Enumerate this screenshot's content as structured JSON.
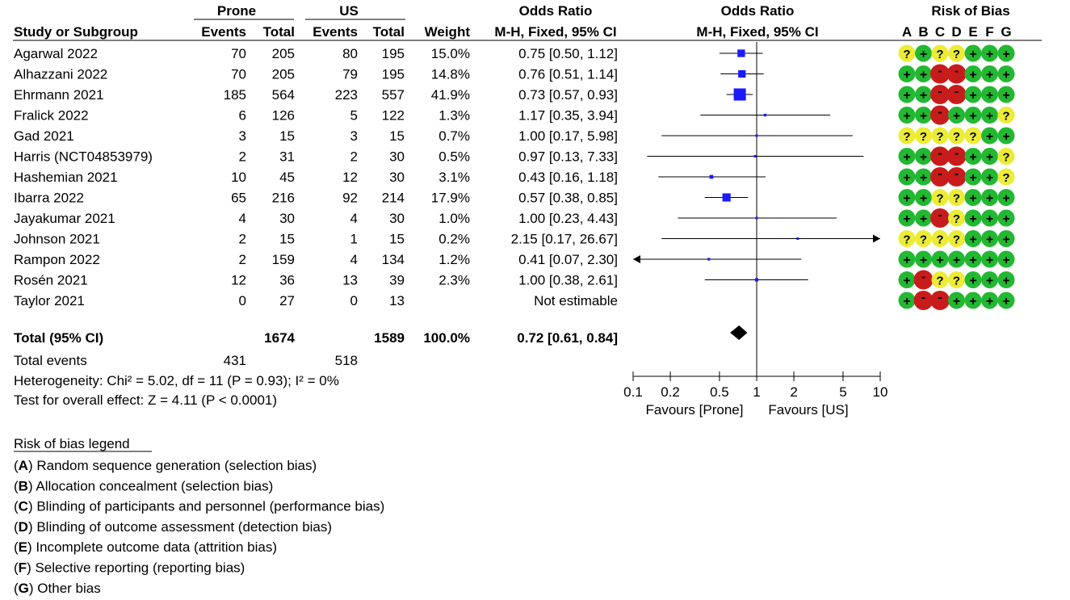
{
  "chart_data": {
    "type": "forest",
    "header": {
      "group1": "Prone",
      "group2": "US",
      "or_table": "Odds Ratio",
      "or_plot": "Odds Ratio",
      "rob": "Risk of Bias",
      "col_study": "Study or Subgroup",
      "col_events": "Events",
      "col_total": "Total",
      "col_weight": "Weight",
      "col_method": "M-H, Fixed, 95% CI",
      "col_method_plot": "M-H, Fixed, 95% CI",
      "rob_letters": [
        "A",
        "B",
        "C",
        "D",
        "E",
        "F",
        "G"
      ]
    },
    "studies": [
      {
        "name": "Agarwal 2022",
        "e1": "70",
        "t1": "205",
        "e2": "80",
        "t2": "195",
        "weight": "15.0%",
        "or_text": "0.75 [0.50, 1.12]",
        "or": 0.75,
        "lo": 0.5,
        "hi": 1.12,
        "w": 15.0,
        "rob": [
          "?",
          "+",
          "?",
          "?",
          "+",
          "+",
          "+"
        ]
      },
      {
        "name": "Alhazzani 2022",
        "e1": "70",
        "t1": "205",
        "e2": "79",
        "t2": "195",
        "weight": "14.8%",
        "or_text": "0.76 [0.51, 1.14]",
        "or": 0.76,
        "lo": 0.51,
        "hi": 1.14,
        "w": 14.8,
        "rob": [
          "+",
          "+",
          "-",
          "-",
          "+",
          "+",
          "+"
        ]
      },
      {
        "name": "Ehrmann 2021",
        "e1": "185",
        "t1": "564",
        "e2": "223",
        "t2": "557",
        "weight": "41.9%",
        "or_text": "0.73 [0.57, 0.93]",
        "or": 0.73,
        "lo": 0.57,
        "hi": 0.93,
        "w": 41.9,
        "rob": [
          "+",
          "+",
          "-",
          "-",
          "+",
          "+",
          "+"
        ]
      },
      {
        "name": "Fralick 2022",
        "e1": "6",
        "t1": "126",
        "e2": "5",
        "t2": "122",
        "weight": "1.3%",
        "or_text": "1.17 [0.35, 3.94]",
        "or": 1.17,
        "lo": 0.35,
        "hi": 3.94,
        "w": 1.3,
        "rob": [
          "+",
          "+",
          "-",
          "+",
          "+",
          "+",
          "?"
        ]
      },
      {
        "name": "Gad 2021",
        "e1": "3",
        "t1": "15",
        "e2": "3",
        "t2": "15",
        "weight": "0.7%",
        "or_text": "1.00 [0.17, 5.98]",
        "or": 1.0,
        "lo": 0.17,
        "hi": 5.98,
        "w": 0.7,
        "rob": [
          "?",
          "?",
          "?",
          "?",
          "?",
          "+",
          "+"
        ]
      },
      {
        "name": "Harris (NCT04853979)",
        "e1": "2",
        "t1": "31",
        "e2": "2",
        "t2": "30",
        "weight": "0.5%",
        "or_text": "0.97 [0.13, 7.33]",
        "or": 0.97,
        "lo": 0.13,
        "hi": 7.33,
        "w": 0.5,
        "rob": [
          "+",
          "+",
          "-",
          "-",
          "+",
          "+",
          "?"
        ]
      },
      {
        "name": "Hashemian 2021",
        "e1": "10",
        "t1": "45",
        "e2": "12",
        "t2": "30",
        "weight": "3.1%",
        "or_text": "0.43 [0.16, 1.18]",
        "or": 0.43,
        "lo": 0.16,
        "hi": 1.18,
        "w": 3.1,
        "rob": [
          "+",
          "+",
          "-",
          "-",
          "+",
          "+",
          "?"
        ]
      },
      {
        "name": "Ibarra 2022",
        "e1": "65",
        "t1": "216",
        "e2": "92",
        "t2": "214",
        "weight": "17.9%",
        "or_text": "0.57 [0.38, 0.85]",
        "or": 0.57,
        "lo": 0.38,
        "hi": 0.85,
        "w": 17.9,
        "rob": [
          "+",
          "+",
          "?",
          "?",
          "+",
          "+",
          "+"
        ]
      },
      {
        "name": "Jayakumar 2021",
        "e1": "4",
        "t1": "30",
        "e2": "4",
        "t2": "30",
        "weight": "1.0%",
        "or_text": "1.00 [0.23, 4.43]",
        "or": 1.0,
        "lo": 0.23,
        "hi": 4.43,
        "w": 1.0,
        "rob": [
          "+",
          "+",
          "-",
          "?",
          "+",
          "+",
          "+"
        ]
      },
      {
        "name": "Johnson 2021",
        "e1": "2",
        "t1": "15",
        "e2": "1",
        "t2": "15",
        "weight": "0.2%",
        "or_text": "2.15 [0.17, 26.67]",
        "or": 2.15,
        "lo": 0.17,
        "hi": 26.67,
        "w": 0.2,
        "rob": [
          "?",
          "?",
          "?",
          "?",
          "+",
          "+",
          "+"
        ]
      },
      {
        "name": "Rampon 2022",
        "e1": "2",
        "t1": "159",
        "e2": "4",
        "t2": "134",
        "weight": "1.2%",
        "or_text": "0.41 [0.07, 2.30]",
        "or": 0.41,
        "lo": 0.07,
        "hi": 2.3,
        "w": 1.2,
        "rob": [
          "+",
          "+",
          "+",
          "+",
          "+",
          "+",
          "+"
        ]
      },
      {
        "name": "Rosén 2021",
        "e1": "12",
        "t1": "36",
        "e2": "13",
        "t2": "39",
        "weight": "2.3%",
        "or_text": "1.00 [0.38, 2.61]",
        "or": 1.0,
        "lo": 0.38,
        "hi": 2.61,
        "w": 2.3,
        "rob": [
          "+",
          "-",
          "?",
          "?",
          "+",
          "+",
          "+"
        ]
      },
      {
        "name": "Taylor 2021",
        "e1": "0",
        "t1": "27",
        "e2": "0",
        "t2": "13",
        "weight": "",
        "or_text": "Not estimable",
        "or": null,
        "lo": null,
        "hi": null,
        "w": null,
        "rob": [
          "+",
          "-",
          "-",
          "+",
          "+",
          "+",
          "+"
        ]
      }
    ],
    "total": {
      "label": "Total (95% CI)",
      "t1": "1674",
      "t2": "1589",
      "weight": "100.0%",
      "or_text": "0.72 [0.61, 0.84]",
      "or": 0.72,
      "lo": 0.61,
      "hi": 0.84
    },
    "total_events": {
      "label": "Total events",
      "e1": "431",
      "e2": "518"
    },
    "heterogeneity": "Heterogeneity: Chi² = 5.02, df = 11 (P = 0.93); I² = 0%",
    "overall_effect": "Test for overall effect: Z = 4.11 (P < 0.0001)",
    "axis": {
      "scale": "log",
      "range": [
        0.1,
        10
      ],
      "ticks": [
        0.1,
        0.2,
        0.5,
        1,
        2,
        5,
        10
      ],
      "tick_labels": [
        "0.1",
        "0.2",
        "0.5",
        "1",
        "2",
        "5",
        "10"
      ],
      "label_left": "Favours [Prone]",
      "label_right": "Favours [US]"
    },
    "legend": {
      "title": "Risk of bias legend",
      "items": [
        {
          "letter": "A",
          "text": " Random sequence generation (selection bias)"
        },
        {
          "letter": "B",
          "text": " Allocation concealment (selection bias)"
        },
        {
          "letter": "C",
          "text": " Blinding of participants and personnel (performance bias)"
        },
        {
          "letter": "D",
          "text": " Blinding of outcome assessment (detection bias)"
        },
        {
          "letter": "E",
          "text": " Incomplete outcome data (attrition bias)"
        },
        {
          "letter": "F",
          "text": " Selective reporting (reporting bias)"
        },
        {
          "letter": "G",
          "text": " Other bias"
        }
      ]
    },
    "colors": {
      "marker": "#1a1aff",
      "diamond": "#000000",
      "low_risk": "#22b832",
      "unclear_risk": "#ecec36",
      "high_risk": "#c81c1c"
    }
  }
}
